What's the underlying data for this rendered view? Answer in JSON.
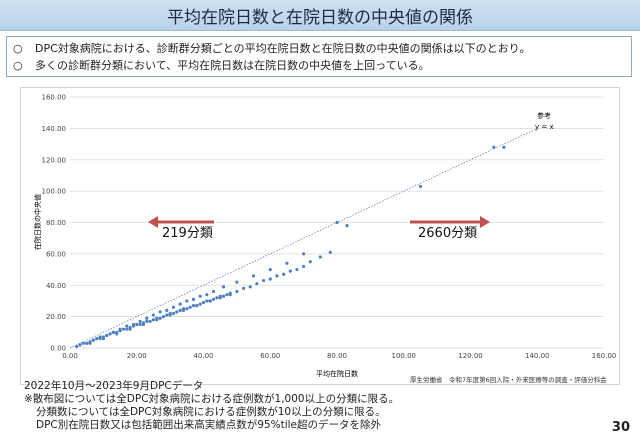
{
  "title": "平均在院日数と在院日数の中央値の関係",
  "bullets": [
    {
      "mark": "○",
      "text": "DPC対象病院における、診断群分類ごとの平均在院日数と在院日数の中央値の関係は以下のとおり。"
    },
    {
      "mark": "○",
      "text": "多くの診断群分類において、平均在院日数は在院日数の中央値を上回っている。"
    }
  ],
  "chart_data": {
    "type": "scatter",
    "xlabel": "平均在院日数",
    "ylabel": "在院日数の中央値",
    "xlim": [
      0,
      160
    ],
    "ylim": [
      0,
      160
    ],
    "x_ticks": [
      "0.00",
      "20.00",
      "40.00",
      "60.00",
      "80.00",
      "100.00",
      "120.00",
      "140.00",
      "160.00"
    ],
    "y_ticks": [
      "0.00",
      "20.00",
      "40.00",
      "60.00",
      "80.00",
      "100.00",
      "120.00",
      "140.00",
      "160.00"
    ],
    "grid": "horizontal",
    "reference_line": {
      "label_top": "参考",
      "label": "y = x",
      "slope": 1
    },
    "series_color": "#4f81bd",
    "series": [
      {
        "x": [
          2,
          3,
          4,
          5,
          6,
          7,
          8,
          9,
          10,
          11,
          12,
          13,
          14,
          15,
          16,
          17,
          18,
          19,
          20,
          21,
          22,
          23,
          24,
          25,
          26,
          27,
          28,
          29,
          30,
          31,
          32,
          33,
          34,
          35,
          36,
          37,
          38,
          39,
          40,
          41,
          42,
          43,
          44,
          45,
          46,
          47,
          48,
          50,
          52,
          54,
          56,
          58,
          60,
          62,
          64,
          66,
          68,
          70,
          72,
          75,
          78,
          80,
          83,
          105,
          127,
          130,
          3,
          5,
          7,
          9,
          11,
          13,
          15,
          17,
          19,
          21,
          23,
          25,
          27,
          29,
          31,
          33,
          35,
          37,
          39,
          41,
          43,
          46,
          50,
          55,
          60,
          65,
          70,
          6,
          10,
          14,
          18,
          22,
          26,
          30,
          34,
          38,
          42,
          45,
          48
        ],
        "y": [
          1,
          2,
          3,
          3,
          4,
          5,
          6,
          6,
          7,
          8,
          9,
          10,
          10,
          11,
          12,
          12,
          13,
          14,
          15,
          15,
          16,
          17,
          17,
          18,
          19,
          19,
          20,
          21,
          22,
          22,
          23,
          24,
          25,
          25,
          26,
          27,
          27,
          28,
          29,
          30,
          30,
          31,
          32,
          33,
          33,
          34,
          35,
          36,
          38,
          39,
          41,
          43,
          44,
          46,
          47,
          49,
          50,
          52,
          55,
          58,
          61,
          80,
          78,
          103,
          128,
          128,
          2,
          3,
          5,
          7,
          8,
          10,
          12,
          14,
          15,
          17,
          19,
          21,
          23,
          24,
          26,
          28,
          30,
          31,
          33,
          34,
          36,
          39,
          42,
          46,
          50,
          54,
          60,
          3,
          6,
          9,
          12,
          15,
          18,
          21,
          24,
          27,
          30,
          32,
          34
        ]
      }
    ],
    "annotations": [
      {
        "text": "219分類",
        "arrow": "left"
      },
      {
        "text": "2660分類",
        "arrow": "right"
      }
    ],
    "source": "厚生労働省　令和7年度第6回入院・外来医療等の調査・評価分科会"
  },
  "footer_lines": [
    "2022年10月～2023年9月DPCデータ",
    "※散布図については全DPC対象病院における症例数が1,000以上の分類に限る。",
    "分類数については全DPC対象病院における症例数が10以上の分類に限る。",
    "DPC別在院日数又は包括範囲出来高実績点数が95%tile超のデータを除外"
  ],
  "page_number": "30"
}
